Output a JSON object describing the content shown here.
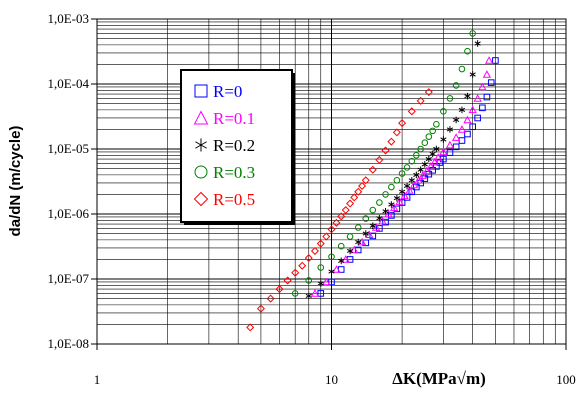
{
  "chart_data": {
    "type": "scatter",
    "title": "",
    "xlabel": "ΔK(MPa√m)",
    "ylabel": "da/dN (m/cycle)",
    "x_scale": "log",
    "y_scale": "log",
    "xlim": [
      1,
      100
    ],
    "ylim": [
      1e-08,
      0.001
    ],
    "grid": true,
    "legend_position": "upper-left",
    "x_ticks": [
      {
        "value": 1,
        "label": "1"
      },
      {
        "value": 10,
        "label": "10"
      },
      {
        "value": 100,
        "label": "100"
      }
    ],
    "y_ticks": [
      {
        "value": 0.001,
        "label": "1,0E-03"
      },
      {
        "value": 0.0001,
        "label": "1,0E-04"
      },
      {
        "value": 1e-05,
        "label": "1,0E-05"
      },
      {
        "value": 1e-06,
        "label": "1,0E-06"
      },
      {
        "value": 1e-07,
        "label": "1,0E-07"
      },
      {
        "value": 1e-08,
        "label": "1,0E-08"
      }
    ],
    "series": [
      {
        "name": "R=0",
        "marker": "square",
        "color": "#0000ff",
        "points": [
          [
            9.0,
            6e-08
          ],
          [
            10.0,
            9e-08
          ],
          [
            11.0,
            1.4e-07
          ],
          [
            12.0,
            2e-07
          ],
          [
            13.0,
            2.8e-07
          ],
          [
            14.0,
            3.6e-07
          ],
          [
            15.0,
            4.6e-07
          ],
          [
            16.0,
            6e-07
          ],
          [
            17.0,
            7.5e-07
          ],
          [
            18.0,
            9.5e-07
          ],
          [
            19.0,
            1.2e-06
          ],
          [
            20.0,
            1.5e-06
          ],
          [
            21.0,
            1.8e-06
          ],
          [
            22.0,
            2.2e-06
          ],
          [
            23.0,
            2.6e-06
          ],
          [
            24.0,
            3e-06
          ],
          [
            25.0,
            3.5e-06
          ],
          [
            26.0,
            4.1e-06
          ],
          [
            27.0,
            4.7e-06
          ],
          [
            28.0,
            5.4e-06
          ],
          [
            29.0,
            6.2e-06
          ],
          [
            30.0,
            7e-06
          ],
          [
            32.0,
            8.8e-06
          ],
          [
            34.0,
            1.08e-05
          ],
          [
            36.0,
            1.35e-05
          ],
          [
            38.0,
            1.7e-05
          ],
          [
            40.0,
            2.2e-05
          ],
          [
            42.0,
            3e-05
          ],
          [
            44.0,
            4.3e-05
          ],
          [
            46.0,
            6.3e-05
          ],
          [
            48.0,
            0.000105
          ],
          [
            50.0,
            0.00023
          ]
        ]
      },
      {
        "name": "R=0.1",
        "marker": "triangle",
        "color": "#ff00ff",
        "points": [
          [
            8.5,
            6e-08
          ],
          [
            9.5,
            9e-08
          ],
          [
            10.5,
            1.4e-07
          ],
          [
            11.5,
            2e-07
          ],
          [
            12.5,
            2.8e-07
          ],
          [
            13.5,
            3.7e-07
          ],
          [
            14.5,
            4.8e-07
          ],
          [
            15.5,
            6.2e-07
          ],
          [
            16.5,
            7.8e-07
          ],
          [
            17.5,
            1e-06
          ],
          [
            18.5,
            1.25e-06
          ],
          [
            19.5,
            1.55e-06
          ],
          [
            20.5,
            1.9e-06
          ],
          [
            21.5,
            2.3e-06
          ],
          [
            22.5,
            2.8e-06
          ],
          [
            23.5,
            3.3e-06
          ],
          [
            24.5,
            3.9e-06
          ],
          [
            25.5,
            4.6e-06
          ],
          [
            26.5,
            5.4e-06
          ],
          [
            27.5,
            6.3e-06
          ],
          [
            28.5,
            7.4e-06
          ],
          [
            30.0,
            9e-06
          ],
          [
            32.0,
            1.15e-05
          ],
          [
            34.0,
            1.5e-05
          ],
          [
            36.0,
            2e-05
          ],
          [
            38.0,
            2.8e-05
          ],
          [
            40.0,
            4e-05
          ],
          [
            42.0,
            6e-05
          ],
          [
            44.0,
            9e-05
          ],
          [
            46.0,
            0.00014
          ],
          [
            47.0,
            0.00023
          ]
        ]
      },
      {
        "name": "R=0.2",
        "marker": "asterisk",
        "color": "#000000",
        "points": [
          [
            8.0,
            5.5e-08
          ],
          [
            9.0,
            8.5e-08
          ],
          [
            10.0,
            1.3e-07
          ],
          [
            11.0,
            1.9e-07
          ],
          [
            12.0,
            2.7e-07
          ],
          [
            13.0,
            3.7e-07
          ],
          [
            14.0,
            5e-07
          ],
          [
            15.0,
            6.6e-07
          ],
          [
            16.0,
            8.6e-07
          ],
          [
            17.0,
            1.1e-06
          ],
          [
            18.0,
            1.4e-06
          ],
          [
            19.0,
            1.75e-06
          ],
          [
            20.0,
            2.2e-06
          ],
          [
            21.0,
            2.7e-06
          ],
          [
            22.0,
            3.3e-06
          ],
          [
            23.0,
            4e-06
          ],
          [
            24.0,
            4.8e-06
          ],
          [
            25.0,
            5.8e-06
          ],
          [
            26.0,
            7e-06
          ],
          [
            27.0,
            8.4e-06
          ],
          [
            28.0,
            1e-05
          ],
          [
            30.0,
            1.4e-05
          ],
          [
            32.0,
            2e-05
          ],
          [
            34.0,
            2.8e-05
          ],
          [
            36.0,
            4e-05
          ],
          [
            38.0,
            6.5e-05
          ],
          [
            40.0,
            0.00014
          ],
          [
            42.0,
            0.00042
          ]
        ]
      },
      {
        "name": "R=0.3",
        "marker": "circle",
        "color": "#008000",
        "points": [
          [
            7.0,
            6e-08
          ],
          [
            8.0,
            9.5e-08
          ],
          [
            9.0,
            1.5e-07
          ],
          [
            10.0,
            2.2e-07
          ],
          [
            11.0,
            3.2e-07
          ],
          [
            12.0,
            4.5e-07
          ],
          [
            13.0,
            6.2e-07
          ],
          [
            14.0,
            8.5e-07
          ],
          [
            15.0,
            1.15e-06
          ],
          [
            16.0,
            1.5e-06
          ],
          [
            17.0,
            2e-06
          ],
          [
            18.0,
            2.6e-06
          ],
          [
            19.0,
            3.3e-06
          ],
          [
            20.0,
            4.2e-06
          ],
          [
            21.0,
            5.2e-06
          ],
          [
            22.0,
            6.5e-06
          ],
          [
            23.0,
            8e-06
          ],
          [
            24.0,
            1e-05
          ],
          [
            25.0,
            1.25e-05
          ],
          [
            26.0,
            1.55e-05
          ],
          [
            27.0,
            1.9e-05
          ],
          [
            28.0,
            2.4e-05
          ],
          [
            30.0,
            3.8e-05
          ],
          [
            32.0,
            6e-05
          ],
          [
            34.0,
            9.5e-05
          ],
          [
            36.0,
            0.00017
          ],
          [
            38.0,
            0.00032
          ],
          [
            40.0,
            0.0006
          ]
        ]
      },
      {
        "name": "R=0.5",
        "marker": "diamond",
        "color": "#ff0000",
        "points": [
          [
            4.5,
            1.8e-08
          ],
          [
            5.0,
            3.5e-08
          ],
          [
            5.5,
            5e-08
          ],
          [
            6.0,
            7e-08
          ],
          [
            6.5,
            9.5e-08
          ],
          [
            7.0,
            1.25e-07
          ],
          [
            7.5,
            1.6e-07
          ],
          [
            8.0,
            2.1e-07
          ],
          [
            8.5,
            2.7e-07
          ],
          [
            9.0,
            3.5e-07
          ],
          [
            9.5,
            4.5e-07
          ],
          [
            10.0,
            5.8e-07
          ],
          [
            10.5,
            7.3e-07
          ],
          [
            11.0,
            9.2e-07
          ],
          [
            11.5,
            1.15e-06
          ],
          [
            12.0,
            1.45e-06
          ],
          [
            12.5,
            1.8e-06
          ],
          [
            13.0,
            2.2e-06
          ],
          [
            13.5,
            2.7e-06
          ],
          [
            14.0,
            3.3e-06
          ],
          [
            15.0,
            4.8e-06
          ],
          [
            16.0,
            6.8e-06
          ],
          [
            17.0,
            9.5e-06
          ],
          [
            18.0,
            1.3e-05
          ],
          [
            19.0,
            1.8e-05
          ],
          [
            20.0,
            2.5e-05
          ],
          [
            22.0,
            3.8e-05
          ],
          [
            24.0,
            5.5e-05
          ],
          [
            26.0,
            7.5e-05
          ]
        ]
      }
    ]
  }
}
